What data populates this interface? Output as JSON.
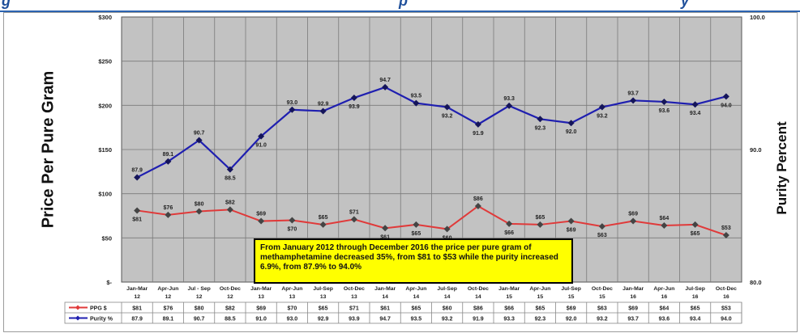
{
  "header": {
    "title_fragment_left": "g",
    "title_fragment_mid": "p",
    "title_fragment_right": "y"
  },
  "chart_data": {
    "type": "line",
    "categories": [
      [
        "Jan-Mar",
        "12"
      ],
      [
        "Apr-Jun",
        "12"
      ],
      [
        "Jul - Sep",
        "12"
      ],
      [
        "Oct-Dec",
        "12"
      ],
      [
        "Jan-Mar",
        "13"
      ],
      [
        "Apr-Jun",
        "13"
      ],
      [
        "Jul-Sep",
        "13"
      ],
      [
        "Oct-Dec",
        "13"
      ],
      [
        "Jan-Mar",
        "14"
      ],
      [
        "Apr-Jun",
        "14"
      ],
      [
        "Jul-Sep",
        "14"
      ],
      [
        "Oct-Dec",
        "14"
      ],
      [
        "Jan-Mar",
        "15"
      ],
      [
        "Apr-Jun",
        "15"
      ],
      [
        "Jul-Sep",
        "15"
      ],
      [
        "Oct-Dec",
        "15"
      ],
      [
        "Jan-Mar",
        "16"
      ],
      [
        "Apr-Jun",
        "16"
      ],
      [
        "Jul-Sep",
        "16"
      ],
      [
        "Oct-Dec",
        "16"
      ]
    ],
    "ylabel": "Price Per Pure Gram",
    "y2label": "Purity Percent",
    "ylim": [
      0,
      300
    ],
    "y2lim": [
      80,
      100
    ],
    "y_ticks": [
      "$-",
      "$50",
      "$100",
      "$150",
      "$200",
      "$250",
      "$300"
    ],
    "y2_ticks": [
      "80.0",
      "90.0",
      "100.0"
    ],
    "grid": true,
    "series": [
      {
        "name": "PPG $",
        "axis": "left",
        "color": "#e03a3a",
        "values": [
          81,
          76,
          80,
          82,
          69,
          70,
          65,
          71,
          61,
          65,
          60,
          86,
          66,
          65,
          69,
          63,
          69,
          64,
          65,
          53
        ],
        "labels": [
          "$81",
          "$76",
          "$80",
          "$82",
          "$69",
          "$70",
          "$65",
          "$71",
          "$61",
          "$65",
          "$60",
          "$86",
          "$66",
          "$65",
          "$69",
          "$63",
          "$69",
          "$64",
          "$65",
          "$53"
        ],
        "label_pos": [
          "below",
          "above",
          "above",
          "above",
          "above",
          "below",
          "above",
          "above",
          "below",
          "below",
          "below",
          "above",
          "below",
          "above",
          "below",
          "below",
          "above",
          "above",
          "below",
          "above"
        ]
      },
      {
        "name": "Purity %",
        "axis": "right",
        "color": "#1f1fb0",
        "values": [
          87.9,
          89.1,
          90.7,
          88.5,
          91.0,
          93.0,
          92.9,
          93.9,
          94.7,
          93.5,
          93.2,
          91.9,
          93.3,
          92.3,
          92.0,
          93.2,
          93.7,
          93.6,
          93.4,
          94.0
        ],
        "labels": [
          "87.9",
          "89.1",
          "90.7",
          "88.5",
          "91.0",
          "93.0",
          "92.9",
          "93.9",
          "94.7",
          "93.5",
          "93.2",
          "91.9",
          "93.3",
          "92.3",
          "92.0",
          "93.2",
          "93.7",
          "93.6",
          "93.4",
          "94.0"
        ],
        "label_pos": [
          "above",
          "above",
          "above",
          "below",
          "below",
          "above",
          "above",
          "below",
          "above",
          "above",
          "below",
          "below",
          "above",
          "below",
          "below",
          "below",
          "above",
          "below",
          "below",
          "below"
        ]
      }
    ],
    "table": {
      "rows": [
        {
          "name": "PPG $",
          "values": [
            "$81",
            "$76",
            "$80",
            "$82",
            "$69",
            "$70",
            "$65",
            "$71",
            "$61",
            "$65",
            "$60",
            "$86",
            "$66",
            "$65",
            "$69",
            "$63",
            "$69",
            "$64",
            "$65",
            "$53"
          ]
        },
        {
          "name": "Purity %",
          "values": [
            "87.9",
            "89.1",
            "90.7",
            "88.5",
            "91.0",
            "93.0",
            "92.9",
            "93.9",
            "94.7",
            "93.5",
            "93.2",
            "91.9",
            "93.3",
            "92.3",
            "92.0",
            "93.2",
            "93.7",
            "93.6",
            "93.4",
            "94.0"
          ]
        }
      ]
    },
    "annotation": "From January 2012 through December 2016 the price per pure gram of methamphetamine decreased 35%, from $81 to $53 while the purity increased 6.9%, from 87.9% to 94.0%"
  }
}
